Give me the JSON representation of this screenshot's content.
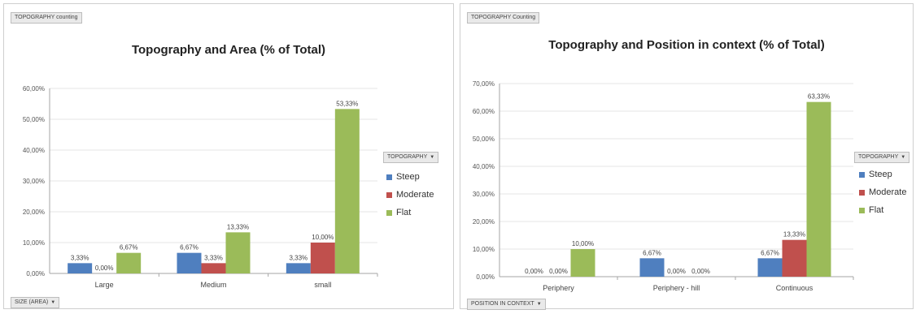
{
  "colors": {
    "Steep": "#4f7fbf",
    "Moderate": "#c0504d",
    "Flat": "#9bbb59",
    "axis": "#a6a6a6",
    "grid": "#e5e5e5"
  },
  "left": {
    "field_button": "TOPOGRAPHY counting",
    "axis_button": "SIZE (AREA)",
    "legend_button": "TOPOGRAPHY",
    "legend": [
      "Steep",
      "Moderate",
      "Flat"
    ]
  },
  "right": {
    "field_button": "TOPOGRAPHY Counting",
    "axis_button": "POSITION IN CONTEXT",
    "legend_button": "TOPOGRAPHY",
    "legend": [
      "Steep",
      "Moderate",
      "Flat"
    ]
  },
  "chart_data": [
    {
      "type": "bar",
      "title": "Topography and Area (% of Total)",
      "categories": [
        "Large",
        "Medium",
        "small"
      ],
      "series": [
        {
          "name": "Steep",
          "values": [
            3.33,
            6.67,
            3.33
          ],
          "labels": [
            "3,33%",
            "6,67%",
            "3,33%"
          ]
        },
        {
          "name": "Moderate",
          "values": [
            0.0,
            3.33,
            10.0
          ],
          "labels": [
            "0,00%",
            "3,33%",
            "10,00%"
          ]
        },
        {
          "name": "Flat",
          "values": [
            6.67,
            13.33,
            53.33
          ],
          "labels": [
            "6,67%",
            "13,33%",
            "53,33%"
          ]
        }
      ],
      "yticks": [
        "0,00%",
        "10,00%",
        "20,00%",
        "30,00%",
        "40,00%",
        "50,00%",
        "60,00%"
      ],
      "ylim": [
        0,
        60
      ],
      "legend_position": "right"
    },
    {
      "type": "bar",
      "title": "Topography and Position in context (% of Total)",
      "categories": [
        "Periphery",
        "Periphery - hill",
        "Continuous"
      ],
      "series": [
        {
          "name": "Steep",
          "values": [
            0.0,
            6.67,
            6.67
          ],
          "labels": [
            "0,00%",
            "6,67%",
            "6,67%"
          ]
        },
        {
          "name": "Moderate",
          "values": [
            0.0,
            0.0,
            13.33
          ],
          "labels": [
            "0,00%",
            "0,00%",
            "13,33%"
          ]
        },
        {
          "name": "Flat",
          "values": [
            10.0,
            0.0,
            63.33
          ],
          "labels": [
            "10,00%",
            "0,00%",
            "63,33%"
          ]
        }
      ],
      "yticks": [
        "0,00%",
        "10,00%",
        "20,00%",
        "30,00%",
        "40,00%",
        "50,00%",
        "60,00%",
        "70,00%"
      ],
      "ylim": [
        0,
        70
      ],
      "legend_position": "right"
    }
  ]
}
